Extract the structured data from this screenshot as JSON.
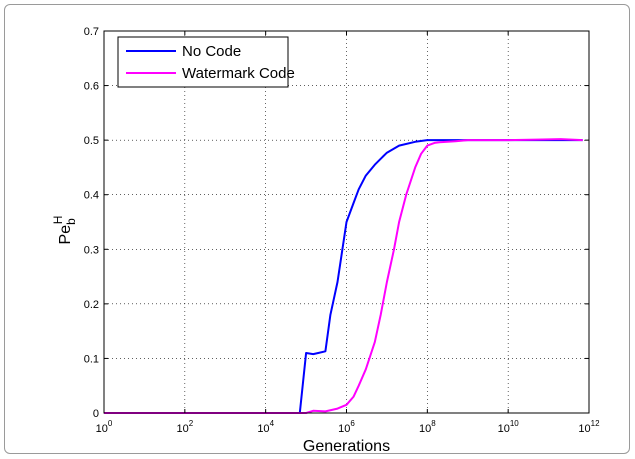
{
  "chart_data": {
    "type": "line",
    "xlabel": "Generations",
    "ylabel": {
      "base": "Pe",
      "sub": "b",
      "sup": "H"
    },
    "xscale": "log10",
    "xlim": [
      "1e0",
      "1e12"
    ],
    "ylim": [
      0,
      0.7
    ],
    "grid": true,
    "legend": "top-left",
    "x_tick_base": "10",
    "x_tick_exponents": [
      "0",
      "2",
      "4",
      "6",
      "8",
      "10",
      "12"
    ],
    "y_ticks": [
      "0",
      "0.1",
      "0.2",
      "0.3",
      "0.4",
      "0.5",
      "0.6",
      "0.7"
    ],
    "series": [
      {
        "name": "No Code",
        "color": "#0000ff",
        "x": [
          1,
          70000,
          100000,
          150000,
          200000,
          300000,
          400000,
          600000,
          1000000,
          1500000,
          2000000,
          3000000,
          5000000,
          8000000,
          10000000,
          20000000,
          50000000,
          100000000,
          200000000,
          1000000000,
          10000000000,
          100000000000,
          700000000000
        ],
        "y": [
          0,
          0,
          0.11,
          0.108,
          0.11,
          0.113,
          0.18,
          0.24,
          0.35,
          0.385,
          0.41,
          0.435,
          0.455,
          0.47,
          0.477,
          0.49,
          0.497,
          0.5,
          0.5,
          0.5,
          0.5,
          0.5,
          0.5
        ]
      },
      {
        "name": "Watermark Code",
        "color": "#ff00ff",
        "x": [
          1,
          100000,
          150000,
          300000,
          600000,
          1000000,
          1500000,
          2000000,
          3000000,
          5000000,
          7000000,
          10000000,
          15000000,
          20000000,
          30000000,
          50000000,
          70000000,
          100000000,
          150000000,
          200000000,
          500000000,
          1000000000,
          3000000000,
          10000000000,
          50000000000,
          200000000000,
          700000000000
        ],
        "y": [
          0,
          0,
          0.004,
          0.003,
          0.008,
          0.015,
          0.03,
          0.05,
          0.08,
          0.13,
          0.18,
          0.24,
          0.3,
          0.35,
          0.4,
          0.45,
          0.475,
          0.49,
          0.495,
          0.496,
          0.498,
          0.5,
          0.5,
          0.5,
          0.501,
          0.502,
          0.5
        ]
      }
    ]
  }
}
